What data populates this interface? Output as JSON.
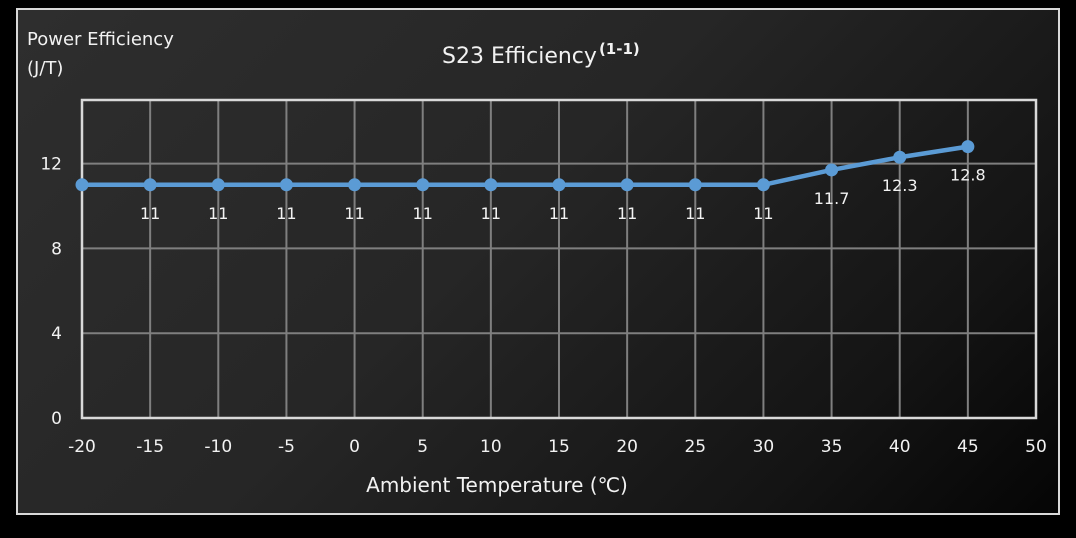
{
  "chart_data": {
    "type": "line",
    "title": "S23 Efficiency",
    "title_superscript": "(1-1)",
    "xlabel": "Ambient Temperature (℃)",
    "ylabel": "Power Efficiency (J/T)",
    "ylabel_lines": [
      "Power Efficiency",
      "(J/T)"
    ],
    "xlim": [
      -20,
      50
    ],
    "ylim": [
      0,
      15
    ],
    "x_ticks": [
      -20,
      -15,
      -10,
      -5,
      0,
      5,
      10,
      15,
      20,
      25,
      30,
      35,
      40,
      45,
      50
    ],
    "y_ticks": [
      0,
      4,
      8,
      12
    ],
    "grid": true,
    "legend": null,
    "series": [
      {
        "name": "S23 Efficiency",
        "color": "#5b9bd5",
        "x": [
          -20,
          -15,
          -10,
          -5,
          0,
          5,
          10,
          15,
          20,
          25,
          30,
          35,
          40,
          45
        ],
        "values": [
          11,
          11,
          11,
          11,
          11,
          11,
          11,
          11,
          11,
          11,
          11,
          11.7,
          12.3,
          12.8
        ],
        "data_labels": [
          "",
          "11",
          "11",
          "11",
          "11",
          "11",
          "11",
          "11",
          "11",
          "11",
          "11",
          "11.7",
          "12.3",
          "12.8"
        ]
      }
    ]
  },
  "colors": {
    "line": "#5b9bd5",
    "grid": "#7f7f7f",
    "axis": "#d9d9d9",
    "text": "#f2f2f2"
  }
}
